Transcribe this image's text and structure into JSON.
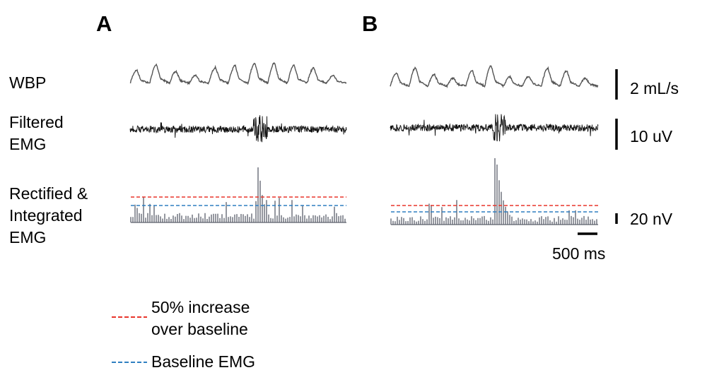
{
  "panels": [
    {
      "letter": "A"
    },
    {
      "letter": "B"
    }
  ],
  "row_labels": {
    "wbp": "WBP",
    "filtered_line1": "Filtered",
    "filtered_line2": "EMG",
    "rect_line1": "Rectified &",
    "rect_line2": "Integrated",
    "rect_line3": "EMG"
  },
  "scale_bars": {
    "wbp": "2 mL/s",
    "emg": "10 uV",
    "integrated": "20 nV",
    "time": "500 ms"
  },
  "legend": {
    "threshold_line1": "50% increase",
    "threshold_line2": "over baseline",
    "baseline": "Baseline EMG"
  },
  "colors": {
    "trace": "#555555",
    "emg": "#111111",
    "threshold": "#e8352c",
    "baseline": "#2f7fc1"
  }
}
